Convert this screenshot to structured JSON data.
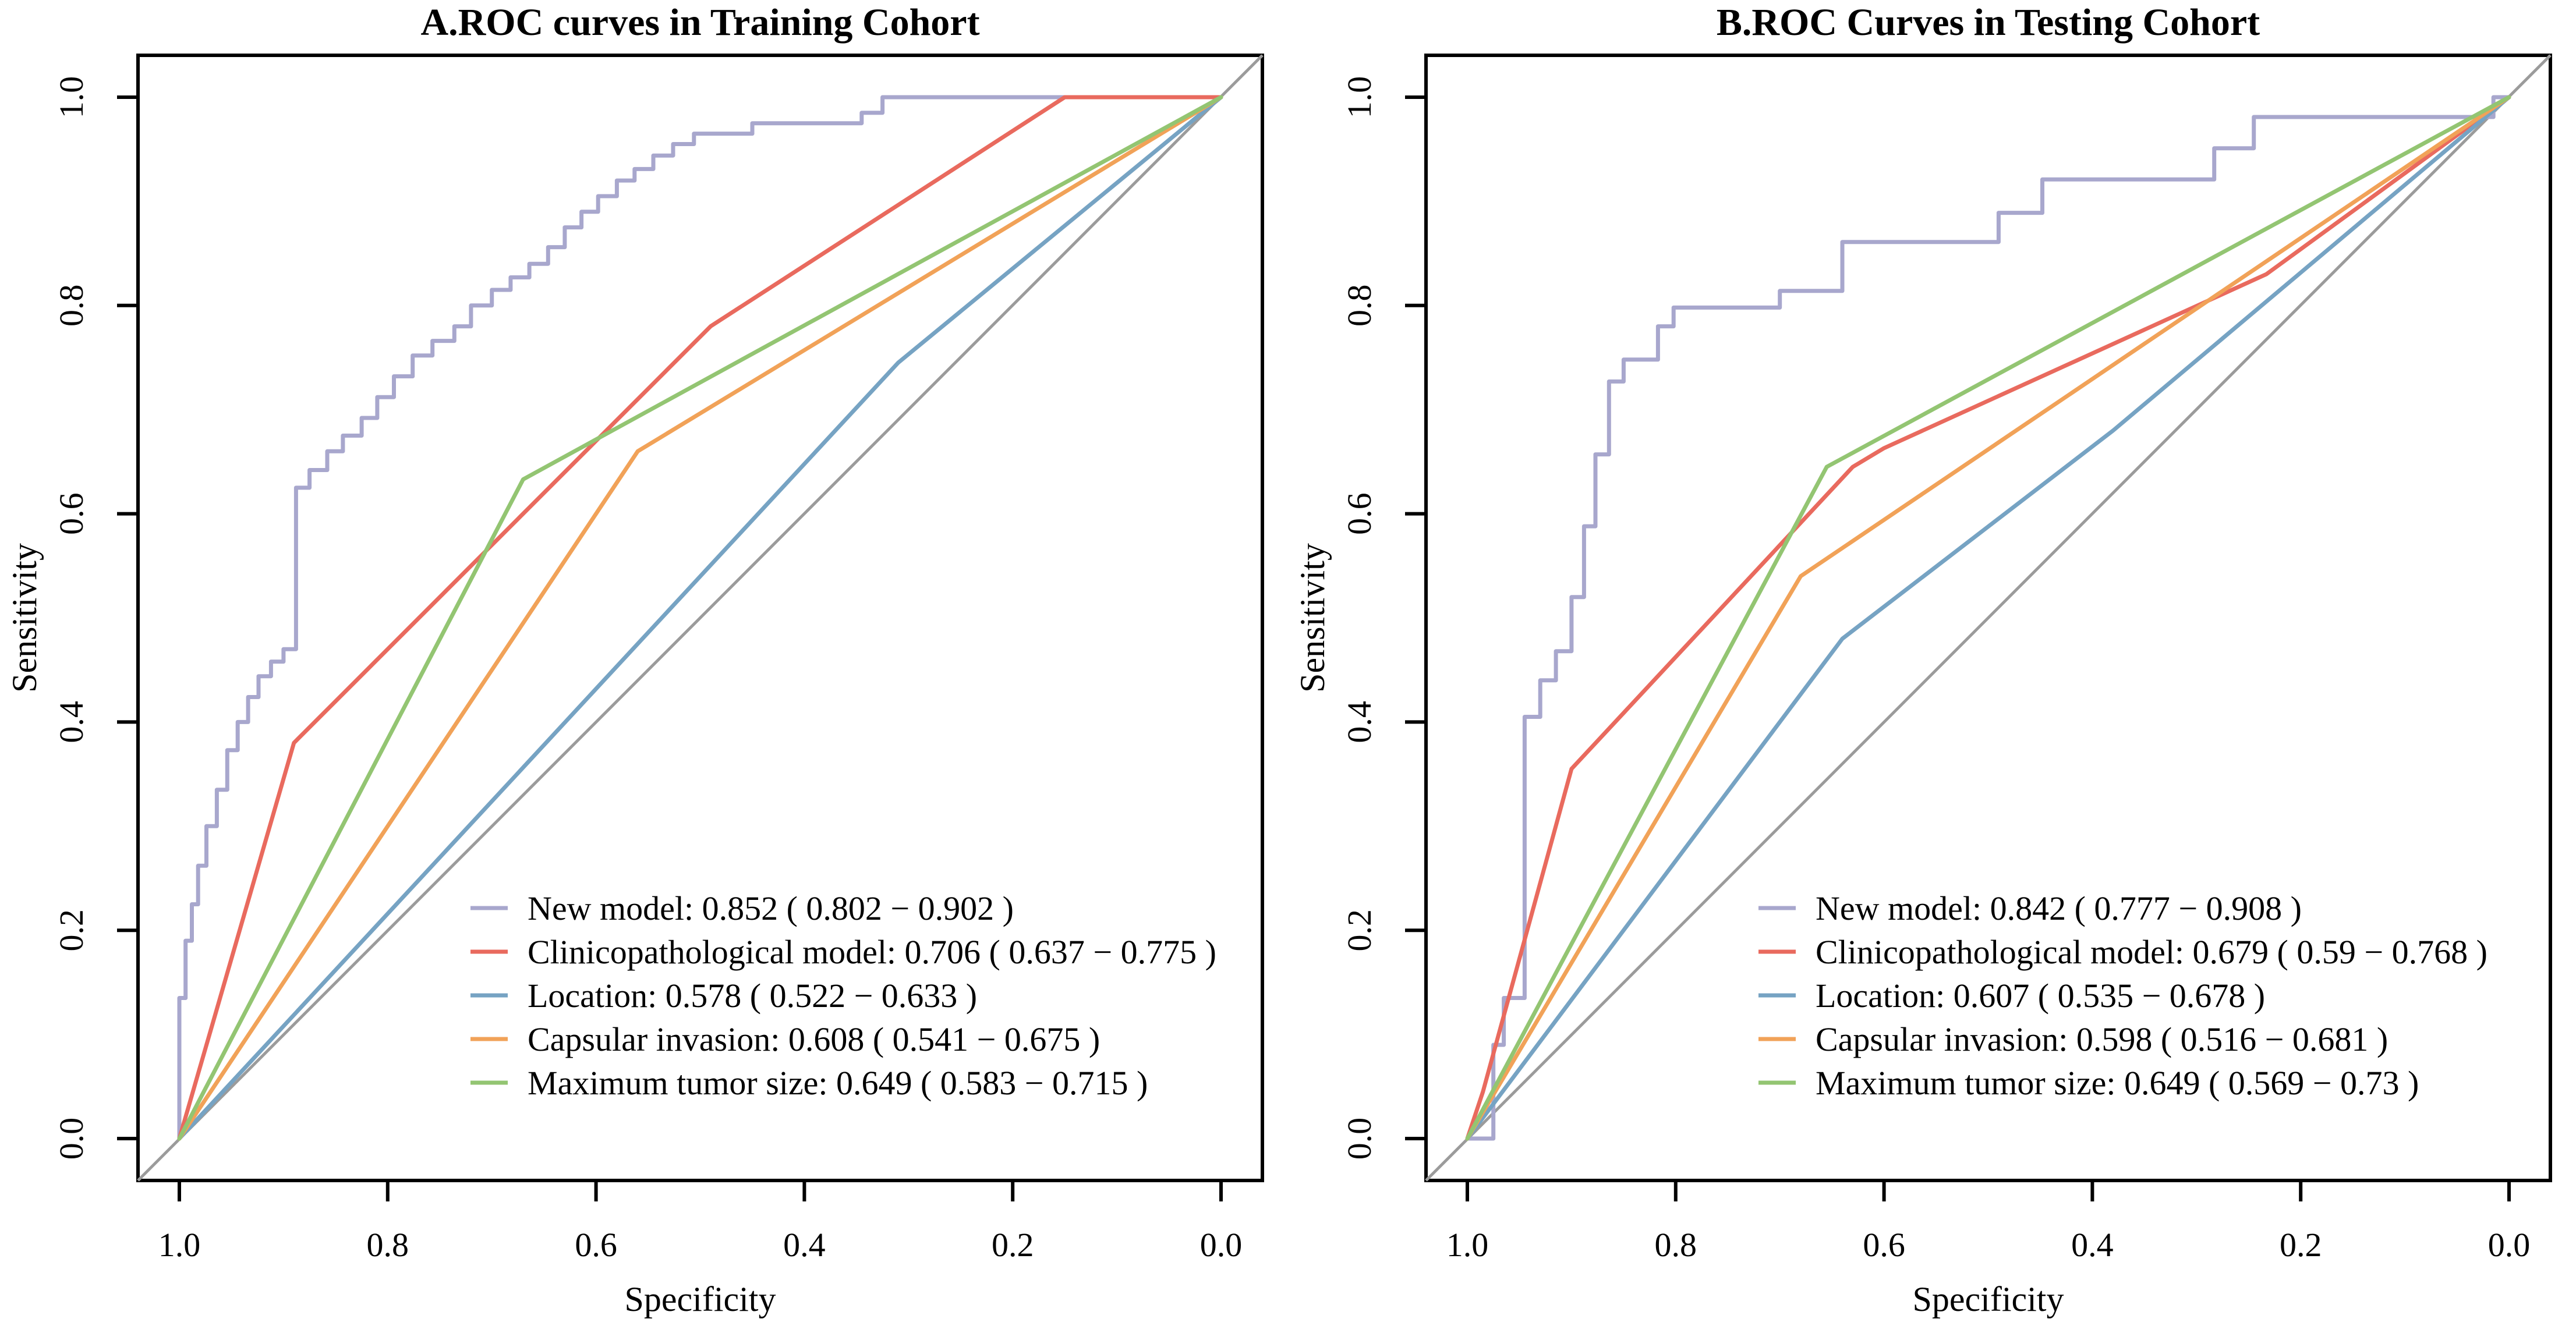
{
  "figure": {
    "background": "#ffffff",
    "text_color": "#000000",
    "box_color": "#000000",
    "diagonal_color": "#9b9b9b"
  },
  "chart_data": [
    {
      "id": "training",
      "type": "line",
      "title": "A.ROC curves in Training Cohort",
      "xlabel": "Specificity",
      "ylabel": "Sensitivity",
      "x_axis_reversed": true,
      "xlim": [
        1.0,
        0.0
      ],
      "ylim": [
        0.0,
        1.0
      ],
      "x_ticks": [
        1.0,
        0.8,
        0.6,
        0.4,
        0.2,
        0.0
      ],
      "y_ticks": [
        0.0,
        0.2,
        0.4,
        0.6,
        0.8,
        1.0
      ],
      "grid": false,
      "legend_position": "inside-lower-right",
      "diagonal_reference": true,
      "series": [
        {
          "name": "New model",
          "auc": 0.852,
          "ci_low": 0.802,
          "ci_high": 0.902,
          "legend_text": "New model:  0.852 ( 0.802 − 0.902 )",
          "color": "#a8a7cd",
          "points": [
            [
              1,
              0
            ],
            [
              1,
              0.135
            ],
            [
              0.994,
              0.135
            ],
            [
              0.994,
              0.19
            ],
            [
              0.988,
              0.19
            ],
            [
              0.988,
              0.225
            ],
            [
              0.982,
              0.225
            ],
            [
              0.982,
              0.262
            ],
            [
              0.974,
              0.262
            ],
            [
              0.974,
              0.3
            ],
            [
              0.964,
              0.3
            ],
            [
              0.964,
              0.335
            ],
            [
              0.954,
              0.335
            ],
            [
              0.954,
              0.373
            ],
            [
              0.944,
              0.373
            ],
            [
              0.944,
              0.4
            ],
            [
              0.934,
              0.4
            ],
            [
              0.934,
              0.424
            ],
            [
              0.924,
              0.424
            ],
            [
              0.924,
              0.444
            ],
            [
              0.912,
              0.444
            ],
            [
              0.912,
              0.458
            ],
            [
              0.9,
              0.458
            ],
            [
              0.9,
              0.47
            ],
            [
              0.888,
              0.47
            ],
            [
              0.888,
              0.625
            ],
            [
              0.875,
              0.625
            ],
            [
              0.875,
              0.642
            ],
            [
              0.858,
              0.642
            ],
            [
              0.858,
              0.66
            ],
            [
              0.843,
              0.66
            ],
            [
              0.843,
              0.675
            ],
            [
              0.825,
              0.675
            ],
            [
              0.825,
              0.692
            ],
            [
              0.81,
              0.692
            ],
            [
              0.81,
              0.712
            ],
            [
              0.794,
              0.712
            ],
            [
              0.794,
              0.732
            ],
            [
              0.776,
              0.732
            ],
            [
              0.776,
              0.752
            ],
            [
              0.757,
              0.752
            ],
            [
              0.757,
              0.766
            ],
            [
              0.736,
              0.766
            ],
            [
              0.736,
              0.78
            ],
            [
              0.72,
              0.78
            ],
            [
              0.72,
              0.8
            ],
            [
              0.7,
              0.8
            ],
            [
              0.7,
              0.815
            ],
            [
              0.682,
              0.815
            ],
            [
              0.682,
              0.827
            ],
            [
              0.664,
              0.827
            ],
            [
              0.664,
              0.84
            ],
            [
              0.646,
              0.84
            ],
            [
              0.646,
              0.856
            ],
            [
              0.63,
              0.856
            ],
            [
              0.63,
              0.875
            ],
            [
              0.614,
              0.875
            ],
            [
              0.614,
              0.89
            ],
            [
              0.598,
              0.89
            ],
            [
              0.598,
              0.905
            ],
            [
              0.58,
              0.905
            ],
            [
              0.58,
              0.92
            ],
            [
              0.563,
              0.92
            ],
            [
              0.563,
              0.931
            ],
            [
              0.545,
              0.931
            ],
            [
              0.545,
              0.944
            ],
            [
              0.526,
              0.944
            ],
            [
              0.526,
              0.955
            ],
            [
              0.506,
              0.955
            ],
            [
              0.506,
              0.965
            ],
            [
              0.45,
              0.965
            ],
            [
              0.45,
              0.975
            ],
            [
              0.345,
              0.975
            ],
            [
              0.345,
              0.985
            ],
            [
              0.325,
              0.985
            ],
            [
              0.325,
              1
            ],
            [
              0,
              1
            ]
          ]
        },
        {
          "name": "Clinicopathological model",
          "auc": 0.706,
          "ci_low": 0.637,
          "ci_high": 0.775,
          "legend_text": "Clinicopathological model:  0.706 ( 0.637 − 0.775 )",
          "color": "#e96a5e",
          "points": [
            [
              1,
              0
            ],
            [
              0.89,
              0.38
            ],
            [
              0.49,
              0.78
            ],
            [
              0.15,
              1
            ],
            [
              0,
              1
            ]
          ]
        },
        {
          "name": "Location",
          "auc": 0.578,
          "ci_low": 0.522,
          "ci_high": 0.633,
          "legend_text": "Location:  0.578 ( 0.522 − 0.633 )",
          "color": "#76a3c3",
          "points": [
            [
              1,
              0
            ],
            [
              0.31,
              0.745
            ],
            [
              0,
              1
            ]
          ]
        },
        {
          "name": "Capsular invasion",
          "auc": 0.608,
          "ci_low": 0.541,
          "ci_high": 0.675,
          "legend_text": "Capsular invasion:  0.608 ( 0.541 − 0.675 )",
          "color": "#f1a258",
          "points": [
            [
              1,
              0
            ],
            [
              0.56,
              0.66
            ],
            [
              0,
              1
            ]
          ]
        },
        {
          "name": "Maximum tumor size",
          "auc": 0.649,
          "ci_low": 0.583,
          "ci_high": 0.715,
          "legend_text": "Maximum tumor size:  0.649 ( 0.583 − 0.715 )",
          "color": "#93c572",
          "points": [
            [
              1,
              0
            ],
            [
              0.67,
              0.633
            ],
            [
              0,
              1
            ]
          ]
        }
      ]
    },
    {
      "id": "testing",
      "type": "line",
      "title": "B.ROC Curves in Testing Cohort",
      "xlabel": "Specificity",
      "ylabel": "Sensitivity",
      "x_axis_reversed": true,
      "xlim": [
        1.0,
        0.0
      ],
      "ylim": [
        0.0,
        1.0
      ],
      "x_ticks": [
        1.0,
        0.8,
        0.6,
        0.4,
        0.2,
        0.0
      ],
      "y_ticks": [
        0.0,
        0.2,
        0.4,
        0.6,
        0.8,
        1.0
      ],
      "grid": false,
      "legend_position": "inside-lower-right",
      "diagonal_reference": true,
      "series": [
        {
          "name": "New model",
          "auc": 0.842,
          "ci_low": 0.777,
          "ci_high": 0.908,
          "legend_text": "New model:  0.842 ( 0.777 − 0.908 )",
          "color": "#a8a7cd",
          "points": [
            [
              1,
              0
            ],
            [
              0.975,
              0
            ],
            [
              0.975,
              0.09
            ],
            [
              0.965,
              0.09
            ],
            [
              0.965,
              0.135
            ],
            [
              0.945,
              0.135
            ],
            [
              0.945,
              0.405
            ],
            [
              0.93,
              0.405
            ],
            [
              0.93,
              0.44
            ],
            [
              0.915,
              0.44
            ],
            [
              0.915,
              0.468
            ],
            [
              0.9,
              0.468
            ],
            [
              0.9,
              0.52
            ],
            [
              0.888,
              0.52
            ],
            [
              0.888,
              0.588
            ],
            [
              0.877,
              0.588
            ],
            [
              0.877,
              0.657
            ],
            [
              0.864,
              0.657
            ],
            [
              0.864,
              0.727
            ],
            [
              0.85,
              0.727
            ],
            [
              0.85,
              0.748
            ],
            [
              0.817,
              0.748
            ],
            [
              0.817,
              0.78
            ],
            [
              0.802,
              0.78
            ],
            [
              0.802,
              0.798
            ],
            [
              0.7,
              0.798
            ],
            [
              0.7,
              0.814
            ],
            [
              0.64,
              0.814
            ],
            [
              0.64,
              0.861
            ],
            [
              0.49,
              0.861
            ],
            [
              0.49,
              0.889
            ],
            [
              0.448,
              0.889
            ],
            [
              0.448,
              0.921
            ],
            [
              0.283,
              0.921
            ],
            [
              0.283,
              0.951
            ],
            [
              0.245,
              0.951
            ],
            [
              0.245,
              0.981
            ],
            [
              0.015,
              0.981
            ],
            [
              0.015,
              1
            ],
            [
              0,
              1
            ]
          ]
        },
        {
          "name": "Clinicopathological model",
          "auc": 0.679,
          "ci_low": 0.59,
          "ci_high": 0.768,
          "legend_text": "Clinicopathological model:  0.679 ( 0.59 − 0.768 )",
          "color": "#e96a5e",
          "points": [
            [
              1,
              0
            ],
            [
              0.985,
              0.045
            ],
            [
              0.9,
              0.355
            ],
            [
              0.63,
              0.645
            ],
            [
              0.6,
              0.663
            ],
            [
              0.233,
              0.83
            ],
            [
              0,
              1
            ]
          ]
        },
        {
          "name": "Location",
          "auc": 0.607,
          "ci_low": 0.535,
          "ci_high": 0.678,
          "legend_text": "Location:  0.607 ( 0.535 − 0.678 )",
          "color": "#76a3c3",
          "points": [
            [
              1,
              0
            ],
            [
              0.64,
              0.48
            ],
            [
              0.38,
              0.68
            ],
            [
              0,
              1
            ]
          ]
        },
        {
          "name": "Capsular invasion",
          "auc": 0.598,
          "ci_low": 0.516,
          "ci_high": 0.681,
          "legend_text": "Capsular invasion:  0.598 ( 0.516 − 0.681 )",
          "color": "#f1a258",
          "points": [
            [
              1,
              0
            ],
            [
              0.68,
              0.54
            ],
            [
              0,
              1
            ]
          ]
        },
        {
          "name": "Maximum tumor size",
          "auc": 0.649,
          "ci_low": 0.569,
          "ci_high": 0.73,
          "legend_text": "Maximum tumor size:  0.649 ( 0.569 − 0.73 )",
          "color": "#93c572",
          "points": [
            [
              1,
              0
            ],
            [
              0.655,
              0.645
            ],
            [
              0,
              1
            ]
          ]
        }
      ]
    }
  ]
}
